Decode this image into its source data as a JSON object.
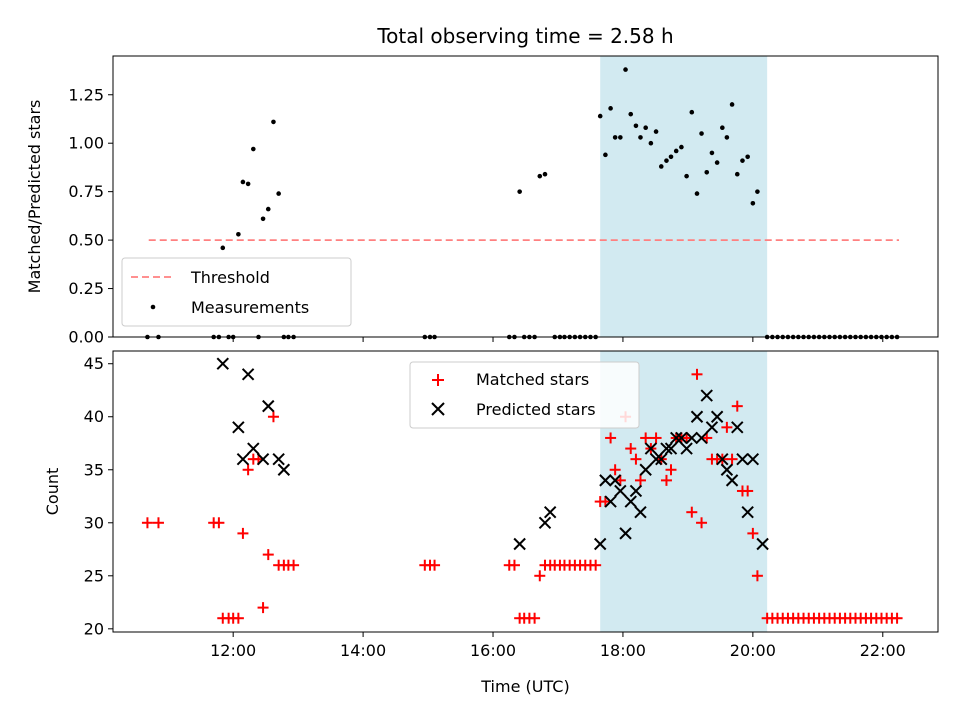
{
  "chart_data": [
    {
      "type": "scatter",
      "title": "Total observing time = 2.58 h",
      "ylabel": "Matched/Predicted stars",
      "xlim_hours": [
        10.15,
        22.85
      ],
      "ylim": [
        0,
        1.45
      ],
      "yticks": [
        0,
        0.25,
        0.5,
        0.75,
        1.0,
        1.25
      ],
      "ytick_labels": [
        "0.00",
        "0.25",
        "0.50",
        "0.75",
        "1.00",
        "1.25"
      ],
      "shaded_region_hours": [
        17.65,
        20.22
      ],
      "shaded_color": "#add8e6",
      "legend": {
        "placement": "lower-left",
        "entries": [
          {
            "label": "Threshold",
            "color": "#ff8080",
            "marker": "dash"
          },
          {
            "label": "Measurements",
            "color": "#000000",
            "marker": "dot"
          }
        ]
      },
      "threshold": {
        "x": [
          10.7,
          22.25
        ],
        "y": 0.5,
        "color": "#ff8080"
      },
      "measurements": [
        [
          10.68,
          0
        ],
        [
          10.85,
          0
        ],
        [
          11.7,
          0
        ],
        [
          11.78,
          0
        ],
        [
          11.93,
          0
        ],
        [
          12.0,
          0
        ],
        [
          11.84,
          0.46
        ],
        [
          12.08,
          0.53
        ],
        [
          12.15,
          0.8
        ],
        [
          12.23,
          0.79
        ],
        [
          12.31,
          0.97
        ],
        [
          12.46,
          0.61
        ],
        [
          12.54,
          0.66
        ],
        [
          12.39,
          0
        ],
        [
          12.62,
          1.11
        ],
        [
          12.7,
          0.74
        ],
        [
          12.78,
          0
        ],
        [
          12.85,
          0
        ],
        [
          12.93,
          0
        ],
        [
          14.95,
          0
        ],
        [
          15.03,
          0
        ],
        [
          15.1,
          0
        ],
        [
          16.25,
          0
        ],
        [
          16.33,
          0
        ],
        [
          16.48,
          0
        ],
        [
          16.56,
          0
        ],
        [
          16.64,
          0
        ],
        [
          16.41,
          0.75
        ],
        [
          16.72,
          0.83
        ],
        [
          16.8,
          0.84
        ],
        [
          16.95,
          0
        ],
        [
          17.03,
          0
        ],
        [
          17.1,
          0
        ],
        [
          17.18,
          0
        ],
        [
          17.26,
          0
        ],
        [
          17.34,
          0
        ],
        [
          17.42,
          0
        ],
        [
          17.5,
          0
        ],
        [
          17.58,
          0
        ],
        [
          17.65,
          1.14
        ],
        [
          17.73,
          0.94
        ],
        [
          17.81,
          1.18
        ],
        [
          17.88,
          1.03
        ],
        [
          17.96,
          1.03
        ],
        [
          18.04,
          1.38
        ],
        [
          18.12,
          1.15
        ],
        [
          18.2,
          1.09
        ],
        [
          18.27,
          1.03
        ],
        [
          18.35,
          1.08
        ],
        [
          18.43,
          1.0
        ],
        [
          18.51,
          1.06
        ],
        [
          18.59,
          0.88
        ],
        [
          18.67,
          0.91
        ],
        [
          18.74,
          0.93
        ],
        [
          18.82,
          0.96
        ],
        [
          18.9,
          0.98
        ],
        [
          18.98,
          0.83
        ],
        [
          19.06,
          1.16
        ],
        [
          19.14,
          0.74
        ],
        [
          19.21,
          1.05
        ],
        [
          19.29,
          0.85
        ],
        [
          19.37,
          0.95
        ],
        [
          19.45,
          0.9
        ],
        [
          19.53,
          1.08
        ],
        [
          19.6,
          1.03
        ],
        [
          19.68,
          1.2
        ],
        [
          19.76,
          0.84
        ],
        [
          19.84,
          0.91
        ],
        [
          19.92,
          0.93
        ],
        [
          20.0,
          0.69
        ],
        [
          20.07,
          0.75
        ],
        [
          20.22,
          0
        ],
        [
          20.3,
          0
        ],
        [
          20.38,
          0
        ],
        [
          20.46,
          0
        ],
        [
          20.54,
          0
        ],
        [
          20.62,
          0
        ],
        [
          20.7,
          0
        ],
        [
          20.78,
          0
        ],
        [
          20.86,
          0
        ],
        [
          20.94,
          0
        ],
        [
          21.02,
          0
        ],
        [
          21.1,
          0
        ],
        [
          21.18,
          0
        ],
        [
          21.26,
          0
        ],
        [
          21.34,
          0
        ],
        [
          21.42,
          0
        ],
        [
          21.5,
          0
        ],
        [
          21.58,
          0
        ],
        [
          21.66,
          0
        ],
        [
          21.74,
          0
        ],
        [
          21.82,
          0
        ],
        [
          21.9,
          0
        ],
        [
          21.98,
          0
        ],
        [
          22.06,
          0
        ],
        [
          22.14,
          0
        ],
        [
          22.22,
          0
        ]
      ]
    },
    {
      "type": "scatter",
      "ylabel": "Count",
      "xlabel": "Time (UTC)",
      "xlim_hours": [
        10.15,
        22.85
      ],
      "ylim": [
        19.7,
        46.2
      ],
      "yticks": [
        20,
        25,
        30,
        35,
        40,
        45
      ],
      "ytick_labels": [
        "20",
        "25",
        "30",
        "35",
        "40",
        "45"
      ],
      "xticks_hours": [
        12,
        14,
        16,
        18,
        20,
        22
      ],
      "xtick_labels": [
        "12:00",
        "14:00",
        "16:00",
        "18:00",
        "20:00",
        "22:00"
      ],
      "shaded_region_hours": [
        17.65,
        20.22
      ],
      "shaded_color": "#add8e6",
      "legend": {
        "placement": "upper-center",
        "entries": [
          {
            "label": "Matched stars",
            "color": "#ff0000",
            "marker": "plus"
          },
          {
            "label": "Predicted stars",
            "color": "#000000",
            "marker": "x"
          }
        ]
      },
      "series": [
        {
          "name": "Matched stars",
          "color": "#ff0000",
          "marker": "plus",
          "points": [
            [
              10.68,
              30
            ],
            [
              10.85,
              30
            ],
            [
              11.7,
              30
            ],
            [
              11.78,
              30
            ],
            [
              11.84,
              21
            ],
            [
              11.93,
              21
            ],
            [
              12.0,
              21
            ],
            [
              12.08,
              21
            ],
            [
              12.15,
              29
            ],
            [
              12.23,
              35
            ],
            [
              12.31,
              36
            ],
            [
              12.39,
              36
            ],
            [
              12.46,
              22
            ],
            [
              12.54,
              27
            ],
            [
              12.62,
              40
            ],
            [
              12.7,
              26
            ],
            [
              12.78,
              26
            ],
            [
              12.85,
              26
            ],
            [
              12.93,
              26
            ],
            [
              14.95,
              26
            ],
            [
              15.03,
              26
            ],
            [
              15.1,
              26
            ],
            [
              16.25,
              26
            ],
            [
              16.33,
              26
            ],
            [
              16.41,
              21
            ],
            [
              16.48,
              21
            ],
            [
              16.56,
              21
            ],
            [
              16.64,
              21
            ],
            [
              16.72,
              25
            ],
            [
              16.8,
              26
            ],
            [
              16.88,
              26
            ],
            [
              16.95,
              26
            ],
            [
              17.03,
              26
            ],
            [
              17.1,
              26
            ],
            [
              17.18,
              26
            ],
            [
              17.26,
              26
            ],
            [
              17.34,
              26
            ],
            [
              17.42,
              26
            ],
            [
              17.5,
              26
            ],
            [
              17.58,
              26
            ],
            [
              17.65,
              32
            ],
            [
              17.73,
              32
            ],
            [
              17.81,
              38
            ],
            [
              17.88,
              35
            ],
            [
              17.96,
              34
            ],
            [
              18.04,
              40
            ],
            [
              18.12,
              37
            ],
            [
              18.2,
              36
            ],
            [
              18.27,
              34
            ],
            [
              18.35,
              38
            ],
            [
              18.43,
              37
            ],
            [
              18.51,
              38
            ],
            [
              18.59,
              36
            ],
            [
              18.67,
              34
            ],
            [
              18.74,
              35
            ],
            [
              18.82,
              38
            ],
            [
              18.9,
              38
            ],
            [
              18.98,
              38
            ],
            [
              19.06,
              31
            ],
            [
              19.14,
              44
            ],
            [
              19.21,
              30
            ],
            [
              19.29,
              38
            ],
            [
              19.37,
              36
            ],
            [
              19.45,
              36
            ],
            [
              19.53,
              36
            ],
            [
              19.6,
              39
            ],
            [
              19.68,
              36
            ],
            [
              19.76,
              41
            ],
            [
              19.84,
              33
            ],
            [
              19.92,
              33
            ],
            [
              20.0,
              29
            ],
            [
              20.07,
              25
            ],
            [
              20.22,
              21
            ],
            [
              20.3,
              21
            ],
            [
              20.38,
              21
            ],
            [
              20.46,
              21
            ],
            [
              20.54,
              21
            ],
            [
              20.62,
              21
            ],
            [
              20.7,
              21
            ],
            [
              20.78,
              21
            ],
            [
              20.86,
              21
            ],
            [
              20.94,
              21
            ],
            [
              21.02,
              21
            ],
            [
              21.1,
              21
            ],
            [
              21.18,
              21
            ],
            [
              21.26,
              21
            ],
            [
              21.34,
              21
            ],
            [
              21.42,
              21
            ],
            [
              21.5,
              21
            ],
            [
              21.58,
              21
            ],
            [
              21.66,
              21
            ],
            [
              21.74,
              21
            ],
            [
              21.82,
              21
            ],
            [
              21.9,
              21
            ],
            [
              21.98,
              21
            ],
            [
              22.06,
              21
            ],
            [
              22.14,
              21
            ],
            [
              22.22,
              21
            ]
          ]
        },
        {
          "name": "Predicted stars",
          "color": "#000000",
          "marker": "x",
          "points": [
            [
              11.84,
              45
            ],
            [
              12.08,
              39
            ],
            [
              12.15,
              36
            ],
            [
              12.23,
              44
            ],
            [
              12.31,
              37
            ],
            [
              12.46,
              36
            ],
            [
              12.54,
              41
            ],
            [
              12.7,
              36
            ],
            [
              12.78,
              35
            ],
            [
              16.41,
              28
            ],
            [
              16.8,
              30
            ],
            [
              16.88,
              31
            ],
            [
              17.65,
              28
            ],
            [
              17.73,
              34
            ],
            [
              17.81,
              32
            ],
            [
              17.88,
              34
            ],
            [
              17.96,
              33
            ],
            [
              18.04,
              29
            ],
            [
              18.12,
              32
            ],
            [
              18.2,
              33
            ],
            [
              18.27,
              31
            ],
            [
              18.35,
              35
            ],
            [
              18.43,
              37
            ],
            [
              18.51,
              36
            ],
            [
              18.59,
              36
            ],
            [
              18.67,
              37
            ],
            [
              18.74,
              37
            ],
            [
              18.82,
              38
            ],
            [
              18.9,
              38
            ],
            [
              18.98,
              37
            ],
            [
              19.06,
              38
            ],
            [
              19.14,
              40
            ],
            [
              19.21,
              38
            ],
            [
              19.29,
              42
            ],
            [
              19.37,
              39
            ],
            [
              19.45,
              40
            ],
            [
              19.53,
              36
            ],
            [
              19.6,
              35
            ],
            [
              19.68,
              34
            ],
            [
              19.76,
              39
            ],
            [
              19.84,
              36
            ],
            [
              19.92,
              31
            ],
            [
              20.0,
              36
            ],
            [
              20.15,
              28
            ]
          ]
        }
      ]
    }
  ]
}
